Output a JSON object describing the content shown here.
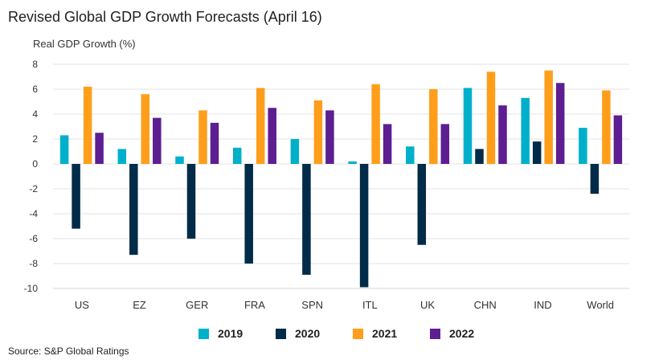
{
  "title": "Revised Global GDP Growth Forecasts (April 16)",
  "source": "Source: S&P Global Ratings",
  "chart_data": {
    "type": "bar",
    "title": "Revised Global GDP Growth Forecasts (April 16)",
    "xlabel": "",
    "ylabel": "Real GDP Growth (%)",
    "ylim": [
      -10,
      8
    ],
    "yticks": [
      8,
      6,
      4,
      2,
      0,
      -2,
      -4,
      -6,
      -8,
      -10
    ],
    "grid": true,
    "legend_position": "bottom",
    "categories": [
      "US",
      "EZ",
      "GER",
      "FRA",
      "SPN",
      "ITL",
      "UK",
      "CHN",
      "IND",
      "World"
    ],
    "series": [
      {
        "name": "2019",
        "color": "#00b0ca",
        "values": [
          2.3,
          1.2,
          0.6,
          1.3,
          2.0,
          0.2,
          1.4,
          6.1,
          5.3,
          2.9
        ]
      },
      {
        "name": "2020",
        "color": "#002b49",
        "values": [
          -5.2,
          -7.3,
          -6.0,
          -8.0,
          -8.9,
          -9.9,
          -6.5,
          1.2,
          1.8,
          -2.4
        ]
      },
      {
        "name": "2021",
        "color": "#ff9e1b",
        "values": [
          6.2,
          5.6,
          4.3,
          6.1,
          5.1,
          6.4,
          6.0,
          7.4,
          7.5,
          5.9
        ]
      },
      {
        "name": "2022",
        "color": "#5c1e91",
        "values": [
          2.5,
          3.7,
          3.3,
          4.5,
          4.3,
          3.2,
          3.2,
          4.7,
          6.5,
          3.9
        ]
      }
    ]
  }
}
